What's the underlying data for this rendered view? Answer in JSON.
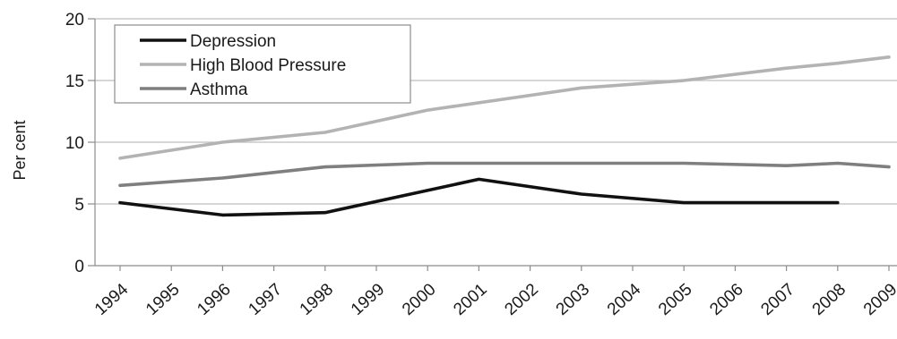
{
  "chart_data": {
    "type": "line",
    "title": "",
    "xlabel": "",
    "ylabel": "Per cent",
    "ylim": [
      0,
      20
    ],
    "yticks": [
      0,
      5,
      10,
      15,
      20
    ],
    "grid": true,
    "legend_position": "top-left",
    "categories": [
      "1994",
      "1995",
      "1996",
      "1997",
      "1998",
      "1999",
      "2000",
      "2001",
      "2002",
      "2003",
      "2004",
      "2005",
      "2006",
      "2007",
      "2008",
      "2009"
    ],
    "series": [
      {
        "name": "Depression",
        "color": "#111111",
        "values": [
          5.1,
          null,
          4.1,
          null,
          4.3,
          null,
          null,
          7.0,
          null,
          5.8,
          null,
          5.1,
          null,
          null,
          5.1,
          null
        ]
      },
      {
        "name": "High Blood Pressure",
        "color": "#b3b3b3",
        "values": [
          8.7,
          null,
          10.0,
          null,
          10.8,
          null,
          12.6,
          null,
          null,
          14.4,
          null,
          15.0,
          null,
          16.0,
          16.4,
          16.9
        ]
      },
      {
        "name": "Asthma",
        "color": "#7f7f7f",
        "values": [
          6.5,
          null,
          7.1,
          null,
          8.0,
          null,
          8.3,
          null,
          null,
          8.3,
          null,
          8.3,
          null,
          8.1,
          8.3,
          8.0
        ]
      }
    ]
  }
}
